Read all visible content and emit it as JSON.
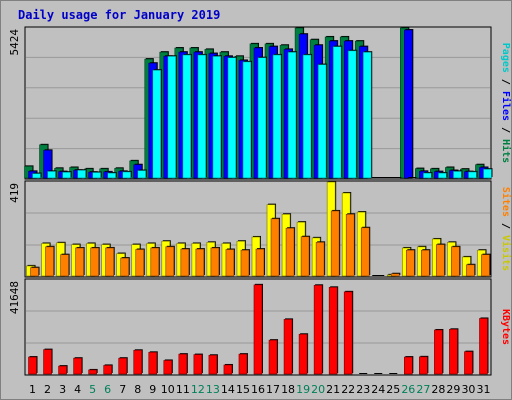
{
  "chart_data": {
    "type": "bar",
    "title": "Daily usage for January 2019",
    "categories": [
      "1",
      "2",
      "3",
      "4",
      "5",
      "6",
      "7",
      "8",
      "9",
      "10",
      "11",
      "12",
      "13",
      "14",
      "15",
      "16",
      "17",
      "18",
      "19",
      "20",
      "21",
      "22",
      "23",
      "24",
      "25",
      "26",
      "27",
      "28",
      "29",
      "30",
      "31"
    ],
    "weekend_days": [
      "5",
      "6",
      "12",
      "13",
      "19",
      "20",
      "26",
      "27"
    ],
    "panels": [
      {
        "name": "hits-files-pages",
        "ymax": 5424,
        "ymax_label": "5424",
        "right_labels": [
          "Pages",
          "Files",
          "Hits"
        ],
        "series": [
          {
            "name": "Hits",
            "color": "#008040",
            "values": [
              420,
              1200,
              350,
              380,
              330,
              330,
              350,
              620,
              4300,
              4550,
              4700,
              4700,
              4650,
              4550,
              4400,
              4850,
              4850,
              4800,
              5424,
              5000,
              5100,
              5100,
              4950,
              0,
              0,
              5424,
              340,
              330,
              380,
              320,
              480
            ]
          },
          {
            "name": "Files",
            "color": "#0000ff",
            "values": [
              240,
              1000,
              230,
              280,
              210,
              220,
              240,
              480,
              4150,
              4400,
              4550,
              4550,
              4500,
              4400,
              4250,
              4700,
              4750,
              4650,
              5200,
              4800,
              4950,
              4950,
              4750,
              0,
              0,
              5350,
              240,
              230,
              270,
              230,
              380
            ]
          },
          {
            "name": "Pages",
            "color": "#00ffff",
            "values": [
              160,
              240,
              210,
              280,
              200,
              180,
              220,
              270,
              3900,
              4400,
              4450,
              4450,
              4400,
              4350,
              4200,
              4350,
              4450,
              4550,
              4450,
              4100,
              4750,
              4600,
              4550,
              0,
              0,
              0,
              180,
              180,
              240,
              220,
              320
            ]
          }
        ]
      },
      {
        "name": "sites-visits",
        "ymax": 419,
        "ymax_label": "419",
        "right_labels": [
          "Sites",
          "Visits"
        ],
        "series": [
          {
            "name": "Visits",
            "color": "#ffff00",
            "values": [
              45,
              145,
              148,
              140,
              145,
              140,
              100,
              140,
              145,
              155,
              145,
              145,
              150,
              145,
              155,
              174,
              318,
              275,
              240,
              170,
              419,
              370,
              285,
              0,
              5,
              125,
              130,
              165,
              150,
              85,
              115
            ]
          },
          {
            "name": "Sites",
            "color": "#ff8000",
            "values": [
              37,
              130,
              95,
              125,
              125,
              125,
              80,
              118,
              125,
              130,
              120,
              120,
              125,
              118,
              115,
              120,
              255,
              213,
              175,
              150,
              290,
              275,
              215,
              0,
              10,
              115,
              115,
              140,
              130,
              50,
              95
            ]
          }
        ]
      },
      {
        "name": "kbytes",
        "ymax": 41648,
        "ymax_label": "41648",
        "right_labels": [
          "KBytes"
        ],
        "series": [
          {
            "name": "KBytes",
            "color": "#ff0000",
            "values": [
              7500,
              10800,
              3500,
              7000,
              1800,
              3800,
              7000,
              10500,
              9600,
              6000,
              8800,
              8600,
              8300,
              4000,
              8800,
              39500,
              15000,
              24200,
              17600,
              39300,
              38400,
              36400,
              0,
              0,
              0,
              7500,
              7600,
              19500,
              19800,
              9900,
              24600
            ]
          }
        ]
      }
    ]
  }
}
